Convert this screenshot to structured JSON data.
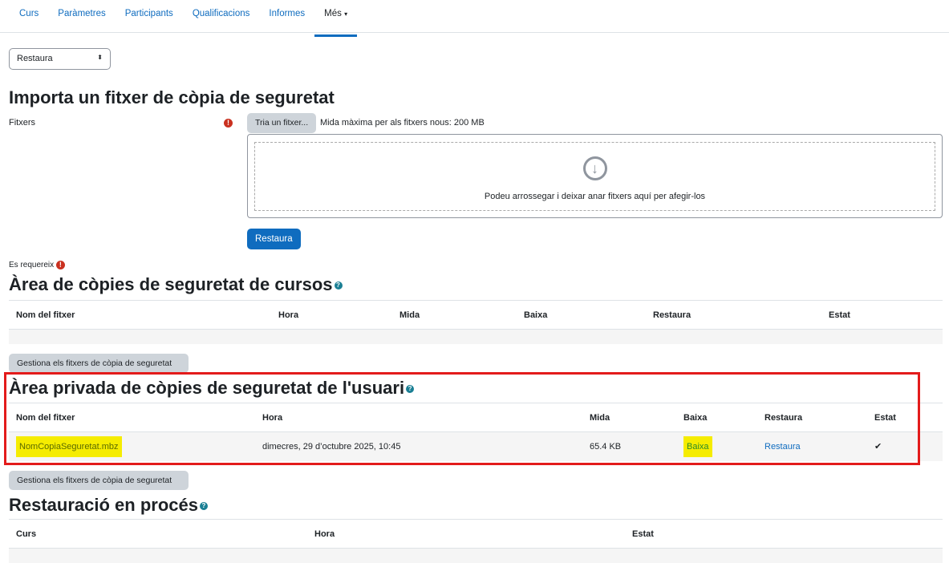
{
  "nav": {
    "items": [
      "Curs",
      "Paràmetres",
      "Participants",
      "Qualificacions",
      "Informes",
      "Més"
    ],
    "active": "Més"
  },
  "select": {
    "value": "Restaura"
  },
  "import": {
    "title": "Importa un fitxer de còpia de seguretat",
    "files_label": "Fitxers",
    "choose_button": "Tria un fitxer...",
    "max_size": "Mida màxima per als fitxers nous: 200 MB",
    "drop_text": "Podeu arrossegar i deixar anar fitxers aquí per afegir-los",
    "restore_button": "Restaura",
    "required": "Es requereix"
  },
  "course_area": {
    "title": "Àrea de còpies de seguretat de cursos",
    "headers": [
      "Nom del fitxer",
      "Hora",
      "Mida",
      "Baixa",
      "Restaura",
      "Estat"
    ],
    "manage_button": "Gestiona els fitxers de còpia de seguretat"
  },
  "user_area": {
    "title": "Àrea privada de còpies de seguretat de l'usuari",
    "headers": [
      "Nom del fitxer",
      "Hora",
      "Mida",
      "Baixa",
      "Restaura",
      "Estat"
    ],
    "rows": [
      {
        "file": "NomCopiaSeguretat.mbz",
        "time": "dimecres, 29 d’octubre 2025, 10:45",
        "size": "65.4 KB",
        "download": "Baixa",
        "restore": "Restaura",
        "status": "✔"
      }
    ],
    "manage_button": "Gestiona els fitxers de còpia de seguretat"
  },
  "in_progress": {
    "title": "Restauració en procés",
    "headers": [
      "Curs",
      "Hora",
      "Estat"
    ]
  },
  "colors": {
    "accent": "#0f6cbf",
    "highlight": "#f5ec00",
    "annotation_box": "#e31b1b"
  }
}
